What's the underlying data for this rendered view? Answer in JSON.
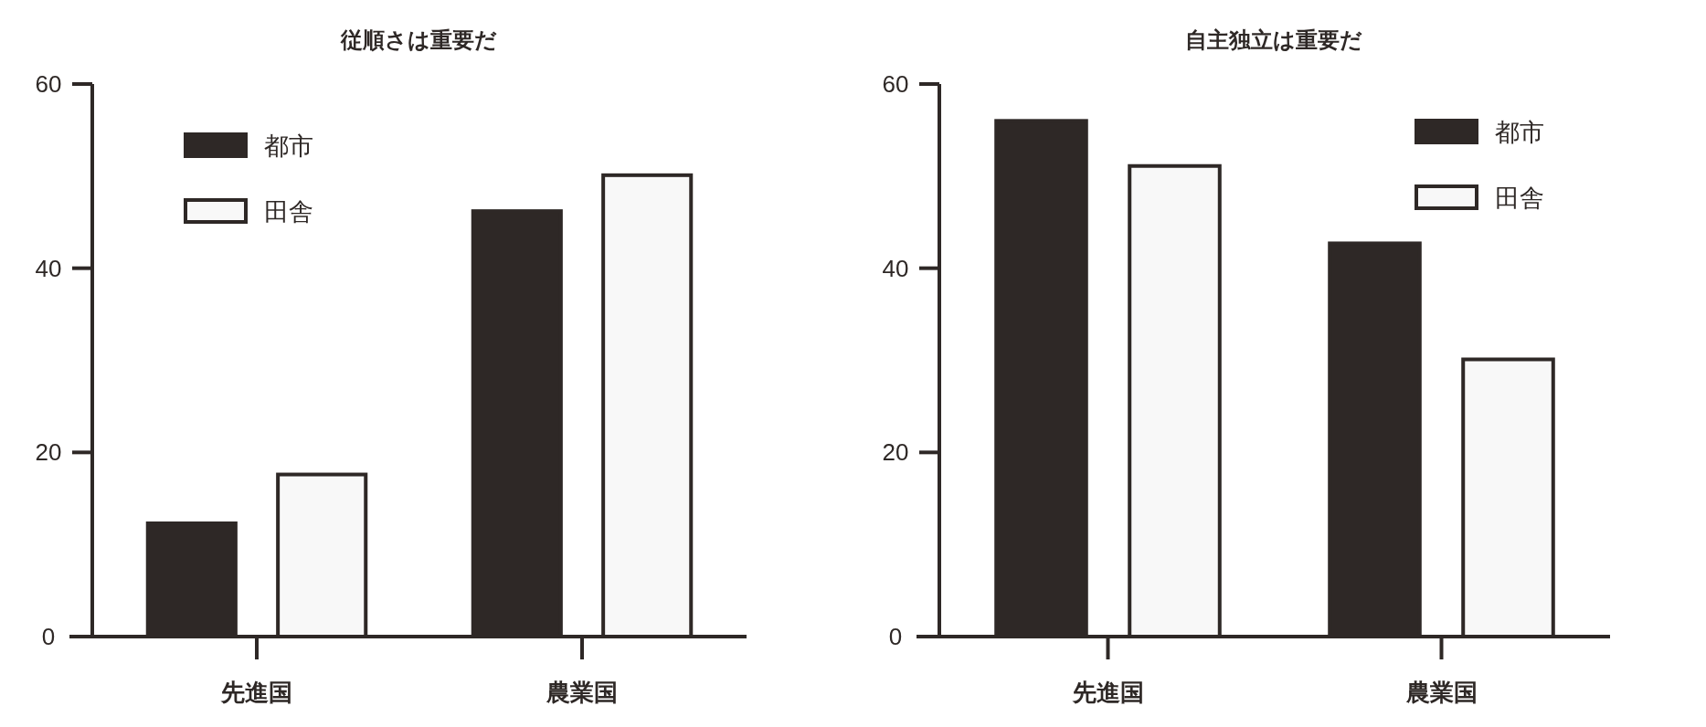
{
  "chart_data": [
    {
      "type": "bar",
      "title": "従順さは重要だ",
      "categories": [
        "先進国",
        "農業国"
      ],
      "series": [
        {
          "name": "都市",
          "color": "#2e2826",
          "values": [
            12.3,
            46.2
          ]
        },
        {
          "name": "田舎",
          "color": "#f8f8f8",
          "values": [
            17.6,
            50.1
          ]
        }
      ],
      "ylim": [
        0,
        60
      ],
      "yticks": [
        0,
        20,
        40,
        60
      ],
      "legend": "top left"
    },
    {
      "type": "bar",
      "title": "自主独立は重要だ",
      "categories": [
        "先進国",
        "農業国"
      ],
      "series": [
        {
          "name": "都市",
          "color": "#2e2826",
          "values": [
            56.0,
            42.7
          ]
        },
        {
          "name": "田舎",
          "color": "#f8f8f8",
          "values": [
            51.1,
            30.1
          ]
        }
      ],
      "ylim": [
        0,
        60
      ],
      "yticks": [
        0,
        20,
        40,
        60
      ],
      "legend": "top right"
    }
  ]
}
